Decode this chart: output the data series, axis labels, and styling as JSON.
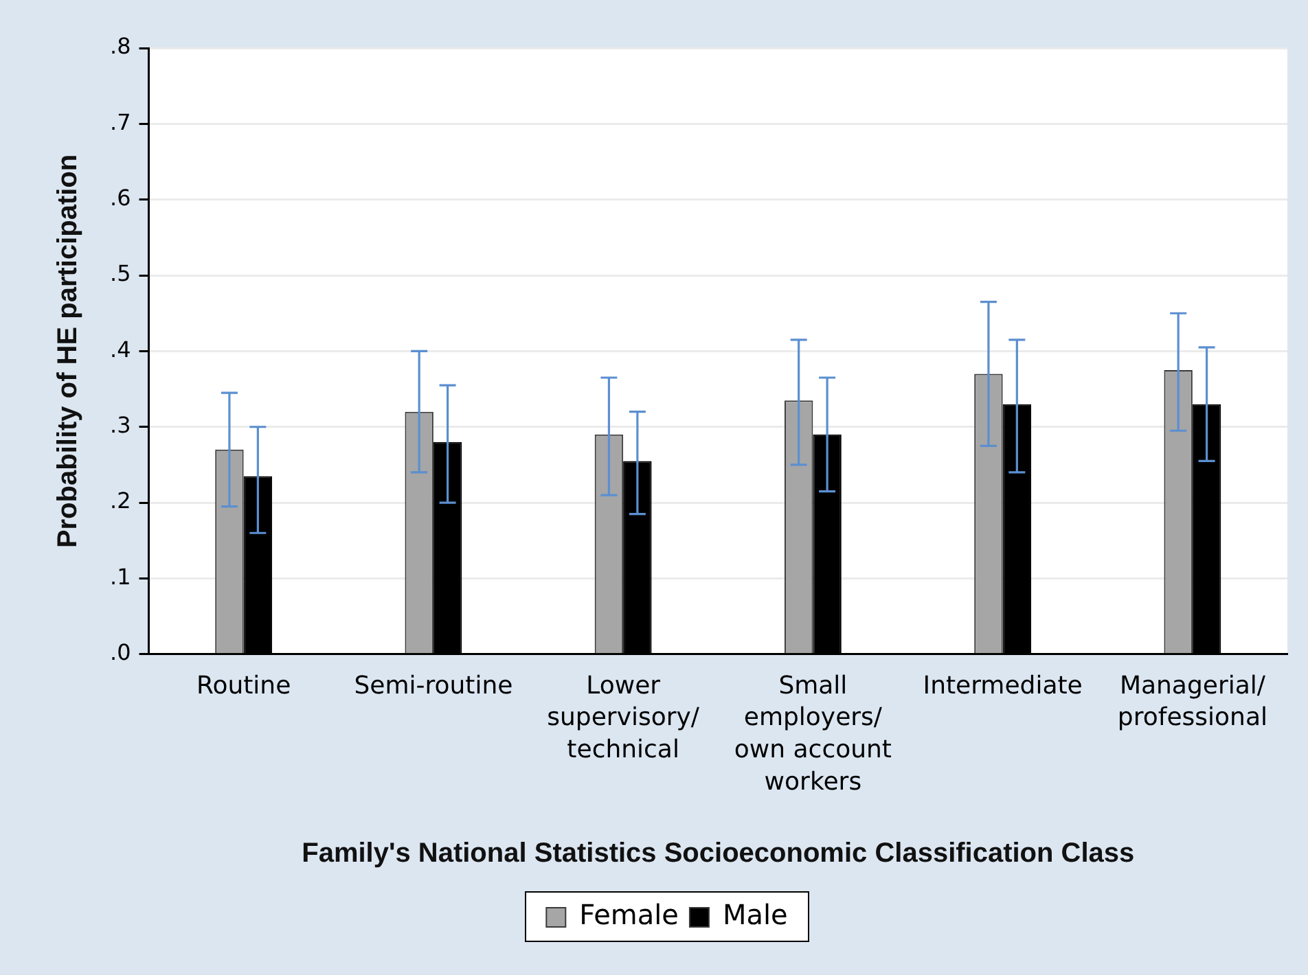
{
  "chart_data": {
    "type": "bar",
    "xlabel": "Family's National Statistics Socioeconomic Classification Class",
    "ylabel": "Probability of HE participation",
    "categories": [
      "Routine",
      "Semi-routine",
      "Lower supervisory/ technical",
      "Small employers/ own account workers",
      "Intermediate",
      "Managerial/ professional"
    ],
    "series": [
      {
        "name": "Female",
        "color": "#a6a6a6",
        "values": [
          0.27,
          0.32,
          0.29,
          0.335,
          0.37,
          0.375
        ],
        "errors": [
          [
            0.195,
            0.345
          ],
          [
            0.24,
            0.4
          ],
          [
            0.21,
            0.365
          ],
          [
            0.25,
            0.415
          ],
          [
            0.275,
            0.465
          ],
          [
            0.295,
            0.45
          ]
        ]
      },
      {
        "name": "Male",
        "color": "#000000",
        "values": [
          0.235,
          0.28,
          0.255,
          0.29,
          0.33,
          0.33
        ],
        "errors": [
          [
            0.16,
            0.3
          ],
          [
            0.2,
            0.355
          ],
          [
            0.185,
            0.32
          ],
          [
            0.215,
            0.365
          ],
          [
            0.24,
            0.415
          ],
          [
            0.255,
            0.405
          ]
        ]
      }
    ],
    "ylim": [
      0,
      0.8
    ],
    "yticks": [
      {
        "value": 0,
        "label": ".0"
      },
      {
        "value": 0.1,
        "label": ".1"
      },
      {
        "value": 0.2,
        "label": ".2"
      },
      {
        "value": 0.3,
        "label": ".3"
      },
      {
        "value": 0.4,
        "label": ".4"
      },
      {
        "value": 0.5,
        "label": ".5"
      },
      {
        "value": 0.6,
        "label": ".6"
      },
      {
        "value": 0.7,
        "label": ".7"
      },
      {
        "value": 0.8,
        "label": ".8"
      }
    ],
    "grid": "y",
    "legend": "bottom"
  }
}
